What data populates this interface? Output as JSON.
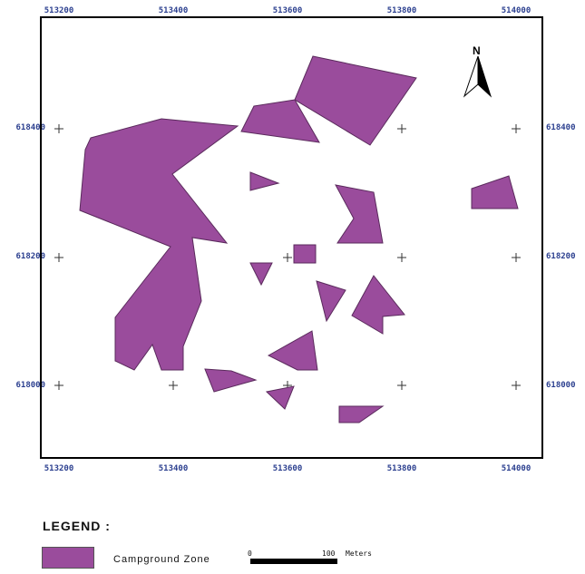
{
  "map": {
    "x_ticks_top": [
      "513200",
      "513400",
      "513600",
      "513800",
      "514000"
    ],
    "x_ticks_bottom": [
      "513200",
      "513400",
      "513600",
      "513800",
      "514000"
    ],
    "y_ticks_left": [
      "618400",
      "618200",
      "618000"
    ],
    "y_ticks_right": [
      "618400",
      "618200",
      "618000"
    ],
    "north_label": "N",
    "zone_color": "#9a4c9c",
    "zone_stroke": "#5a2a5c"
  },
  "legend": {
    "title": "LEGEND :",
    "item_label": "Campground Zone",
    "scale_start": "0",
    "scale_end": "100",
    "scale_unit": "Meters"
  }
}
